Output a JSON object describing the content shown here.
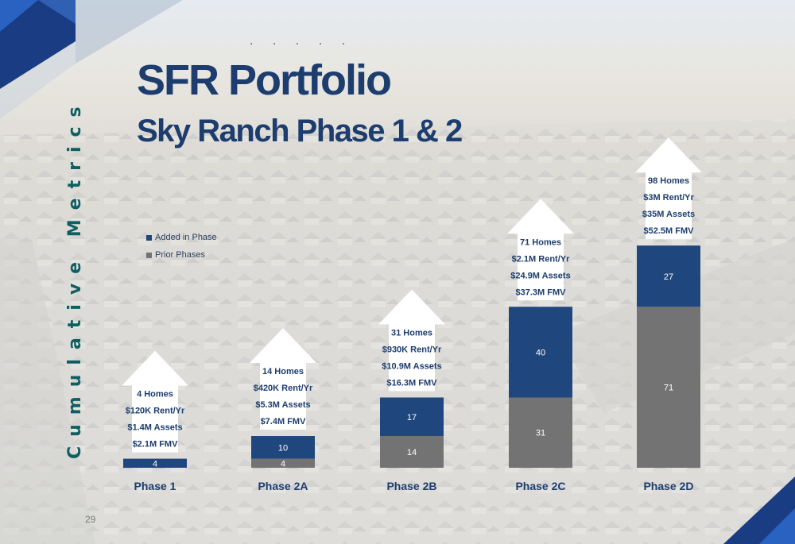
{
  "title": "SFR Portfolio",
  "subtitle": "Sky Ranch Phase 1 & 2",
  "decor_dots": ". . . . .",
  "side_label": "Cumulative Metrics",
  "page_number": "29",
  "colors": {
    "added": "#1f467d",
    "prior": "#737373",
    "title": "#1c3d6e"
  },
  "legend": {
    "added": "Added in Phase",
    "prior": "Prior Phases"
  },
  "chart_data": {
    "type": "bar",
    "stacked": true,
    "categories": [
      "Phase 1",
      "Phase 2A",
      "Phase 2B",
      "Phase 2C",
      "Phase 2D"
    ],
    "series": [
      {
        "name": "Prior Phases",
        "values": [
          0,
          4,
          14,
          31,
          71
        ],
        "labels": [
          "",
          "4",
          "14",
          "31",
          "71"
        ]
      },
      {
        "name": "Added in Phase",
        "values": [
          4,
          10,
          17,
          40,
          27
        ],
        "labels": [
          "4",
          "10",
          "17",
          "40",
          "27"
        ]
      }
    ],
    "annotations": [
      [
        "4 Homes",
        "$120K Rent/Yr",
        "$1.4M Assets",
        "$2.1M FMV"
      ],
      [
        "14 Homes",
        "$420K Rent/Yr",
        "$5.3M Assets",
        "$7.4M FMV"
      ],
      [
        "31 Homes",
        "$930K Rent/Yr",
        "$10.9M Assets",
        "$16.3M FMV"
      ],
      [
        "71 Homes",
        "$2.1M Rent/Yr",
        "$24.9M Assets",
        "$37.3M FMV"
      ],
      [
        "98 Homes",
        "$3M Rent/Yr",
        "$35M Assets",
        "$52.5M FMV"
      ]
    ],
    "legend_position": "left",
    "grid": false
  }
}
